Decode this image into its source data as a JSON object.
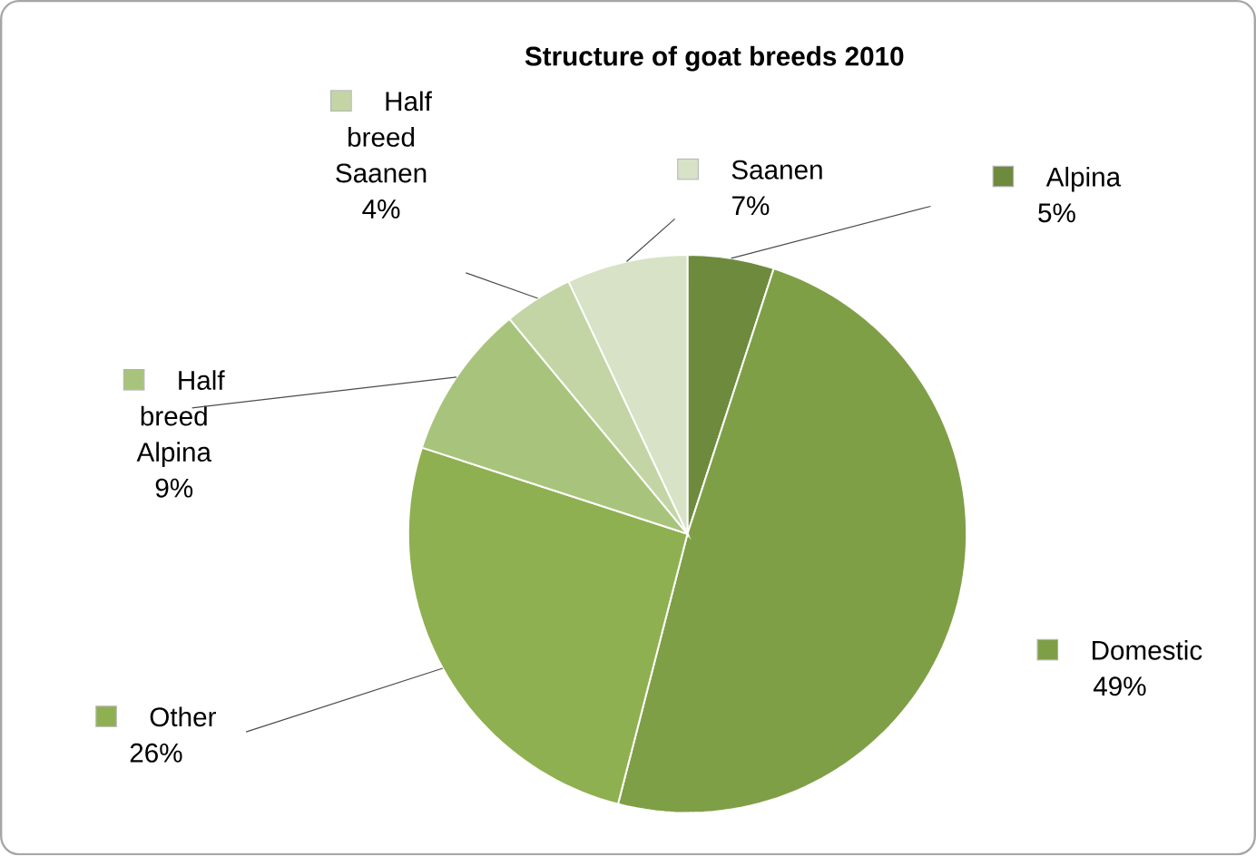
{
  "chart_data": {
    "type": "pie",
    "title": "Structure of goat breeds 2010",
    "categories": [
      "Alpina",
      "Domestic",
      "Other",
      "Half breed Alpina",
      "Half breed Saanen",
      "Saanen"
    ],
    "values": [
      5,
      49,
      26,
      9,
      4,
      7
    ],
    "value_labels": [
      "5%",
      "49%",
      "26%",
      "9%",
      "4%",
      "7%"
    ],
    "colors": [
      "#6e8b3d",
      "#7f9f47",
      "#8fb050",
      "#a8c47c",
      "#c3d5a5",
      "#d7e2c6"
    ],
    "legend": "top left"
  }
}
